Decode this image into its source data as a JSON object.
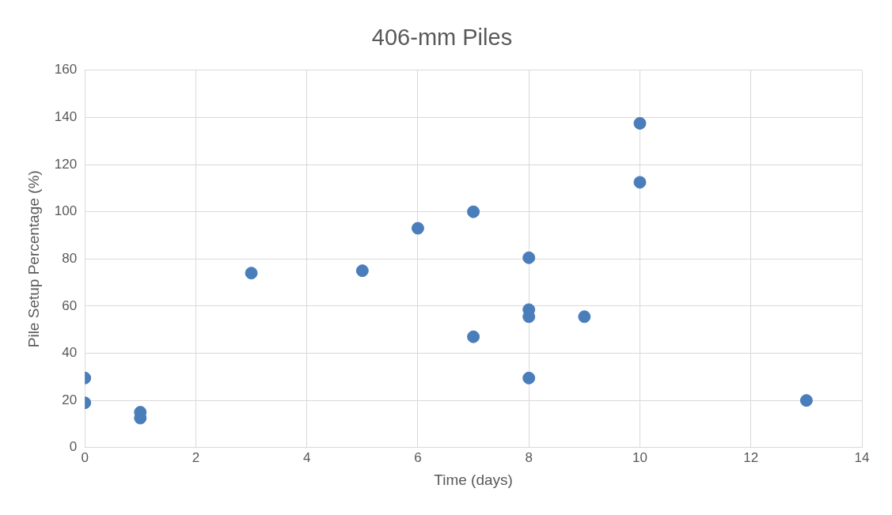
{
  "chart_data": {
    "type": "scatter",
    "title": "406-mm Piles",
    "xlabel": "Time (days)",
    "ylabel": "Pile Setup Percentage (%)",
    "x": [
      0,
      0,
      1,
      1,
      3,
      5,
      6,
      7,
      7,
      8,
      8,
      8,
      8,
      9,
      10,
      10,
      13
    ],
    "values": [
      29.5,
      19,
      15,
      12.5,
      74,
      75,
      93,
      100,
      47,
      80.5,
      58.5,
      55.5,
      29.5,
      55.5,
      137.5,
      112.5,
      20
    ],
    "color": "#4a7ebb",
    "marker": "circle",
    "xlim": [
      0,
      14
    ],
    "xticks": [
      0,
      2,
      4,
      6,
      8,
      10,
      12,
      14
    ],
    "ylim": [
      0,
      160
    ],
    "yticks": [
      0,
      20,
      40,
      60,
      80,
      100,
      120,
      140,
      160
    ],
    "grid": true,
    "legend": false
  }
}
